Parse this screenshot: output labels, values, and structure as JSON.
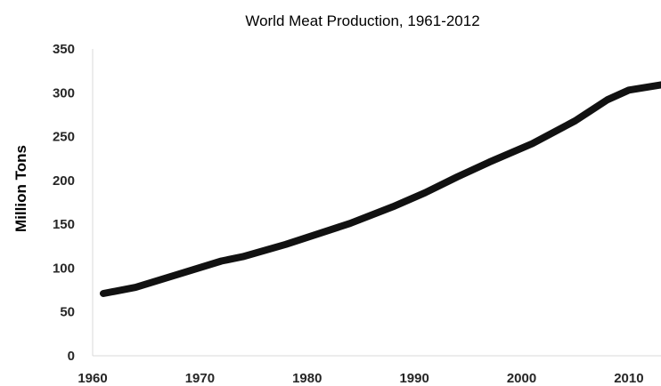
{
  "chart_data": {
    "type": "line",
    "title": "World Meat Production, 1961-2012",
    "xlabel": "",
    "ylabel": "Million Tons",
    "xlim": [
      1960,
      2013
    ],
    "ylim": [
      0,
      350
    ],
    "x_ticks": [
      1960,
      1970,
      1980,
      1990,
      2000,
      2010
    ],
    "y_ticks": [
      0,
      50,
      100,
      150,
      200,
      250,
      300,
      350
    ],
    "grid": false,
    "series": [
      {
        "color": "#111111",
        "points": [
          {
            "x": 1961,
            "y": 71
          },
          {
            "x": 1964,
            "y": 78
          },
          {
            "x": 1968,
            "y": 93
          },
          {
            "x": 1972,
            "y": 108
          },
          {
            "x": 1974,
            "y": 113
          },
          {
            "x": 1978,
            "y": 127
          },
          {
            "x": 1980,
            "y": 135
          },
          {
            "x": 1984,
            "y": 151
          },
          {
            "x": 1988,
            "y": 170
          },
          {
            "x": 1991,
            "y": 186
          },
          {
            "x": 1994,
            "y": 204
          },
          {
            "x": 1997,
            "y": 221
          },
          {
            "x": 2001,
            "y": 242
          },
          {
            "x": 2005,
            "y": 268
          },
          {
            "x": 2008,
            "y": 292
          },
          {
            "x": 2010,
            "y": 303
          },
          {
            "x": 2013,
            "y": 309
          }
        ]
      }
    ]
  }
}
